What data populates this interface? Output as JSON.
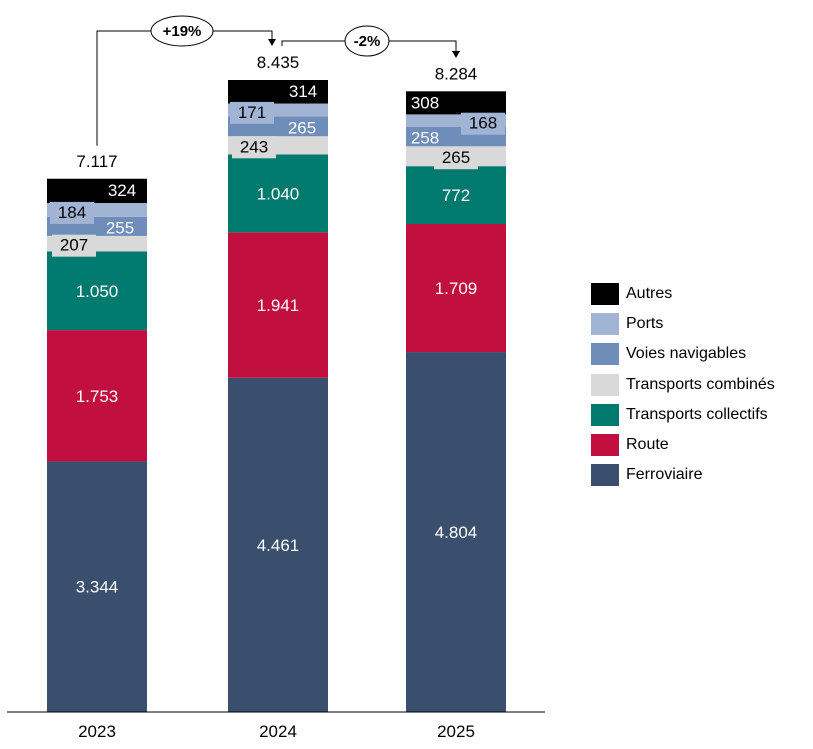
{
  "chart_data": {
    "type": "bar",
    "stacked": true,
    "title": "",
    "xlabel": "",
    "ylabel": "",
    "categories": [
      "2023",
      "2024",
      "2025"
    ],
    "totals": [
      "7.117",
      "8.435",
      "8.284"
    ],
    "series": [
      {
        "name": "Ferroviaire",
        "color": "#3A4E6E",
        "values": [
          3344,
          4461,
          4804
        ],
        "labels": [
          "3.344",
          "4.461",
          "4.804"
        ],
        "label_color": "#ffffff"
      },
      {
        "name": "Route",
        "color": "#C1103F",
        "values": [
          1753,
          1941,
          1709
        ],
        "labels": [
          "1.753",
          "1.941",
          "1.709"
        ],
        "label_color": "#ffffff"
      },
      {
        "name": "Transports collectifs",
        "color": "#007A6E",
        "values": [
          1050,
          1040,
          772
        ],
        "labels": [
          "1.050",
          "1.040",
          "772"
        ],
        "label_color": "#ffffff"
      },
      {
        "name": "Transports combinés",
        "color": "#D9D9D9",
        "values": [
          207,
          243,
          265
        ],
        "labels": [
          "207",
          "243",
          "265"
        ],
        "label_color": "#000000"
      },
      {
        "name": "Voies navigables",
        "color": "#6F8DB9",
        "values": [
          255,
          265,
          258
        ],
        "labels": [
          "255",
          "265",
          "258"
        ],
        "label_color": "#ffffff"
      },
      {
        "name": "Ports",
        "color": "#A2B4D4",
        "values": [
          184,
          171,
          168
        ],
        "labels": [
          "184",
          "171",
          "168"
        ],
        "label_color": "#000000"
      },
      {
        "name": "Autres",
        "color": "#000000",
        "values": [
          324,
          314,
          308
        ],
        "labels": [
          "324",
          "314",
          "308"
        ],
        "label_color": "#ffffff"
      }
    ],
    "annotations": [
      {
        "from": "2023",
        "to": "2024",
        "text": "+19%"
      },
      {
        "from": "2024",
        "to": "2025",
        "text": "-2%"
      }
    ],
    "legend_position": "right",
    "grid": false,
    "ylim": [
      0,
      8435
    ]
  },
  "legend": {
    "items": [
      {
        "label": "Autres",
        "color": "#000000"
      },
      {
        "label": "Ports",
        "color": "#A2B4D4"
      },
      {
        "label": "Voies navigables",
        "color": "#6F8DB9"
      },
      {
        "label": "Transports combinés",
        "color": "#D9D9D9"
      },
      {
        "label": "Transports collectifs",
        "color": "#007A6E"
      },
      {
        "label": "Route",
        "color": "#C1103F"
      },
      {
        "label": "Ferroviaire",
        "color": "#3A4E6E"
      }
    ]
  }
}
